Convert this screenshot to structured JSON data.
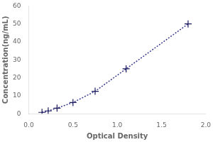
{
  "chart_data": {
    "type": "line",
    "xlabel": "Optical Density",
    "ylabel": "Concentration(ng/mL)",
    "x": [
      0.15,
      0.22,
      0.32,
      0.5,
      0.75,
      1.1,
      1.8
    ],
    "series": [
      {
        "type": "line",
        "line_style": "dotted",
        "color": "#3a3a8e",
        "values": [
          0.78,
          1.56,
          3.13,
          6.25,
          12.5,
          25.0,
          50.0
        ]
      },
      {
        "type": "scatter",
        "marker": "+",
        "color": "#1a1a5e",
        "values": [
          0.78,
          1.56,
          3.13,
          6.25,
          12.5,
          25.0,
          50.0
        ]
      }
    ],
    "xlim": [
      0,
      2
    ],
    "ylim": [
      0,
      60
    ],
    "xticks": [
      {
        "value": 0,
        "label": "0.0"
      },
      0.5,
      {
        "value": 1.0,
        "label": "1.0"
      },
      1.5,
      {
        "value": 2.0,
        "label": "2.0"
      }
    ],
    "yticks": [
      0,
      10,
      20,
      30,
      40,
      50,
      60
    ],
    "grid": false
  }
}
